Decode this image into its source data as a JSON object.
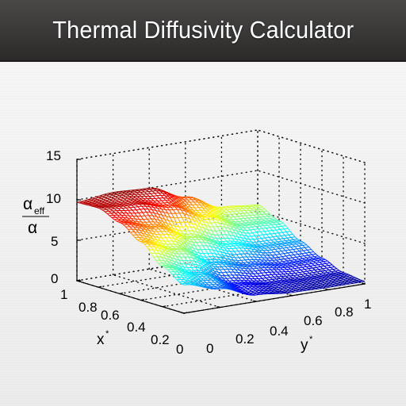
{
  "app": {
    "title": "Thermal Diffusivity Calculator"
  },
  "chart_data": {
    "type": "surface",
    "zlabel_numerator": "α",
    "zlabel_numerator_sub": "eff",
    "zlabel_denominator": "α",
    "xlabel": "x",
    "xlabel_sup": "*",
    "ylabel": "y",
    "ylabel_sup": "*",
    "zticks": [
      "0",
      "5",
      "10",
      "15"
    ],
    "xticks": [
      "0",
      "0.2",
      "0.4",
      "0.6",
      "0.8",
      "1"
    ],
    "yticks": [
      "0",
      "0.2",
      "0.4",
      "0.6",
      "0.8",
      "1"
    ],
    "zlim": [
      0,
      15
    ],
    "xlim": [
      0,
      1
    ],
    "ylim": [
      0,
      1
    ],
    "colormap": "jet",
    "grid": true,
    "surface_description_points": {
      "x_samples": [
        0,
        0.2,
        0.4,
        0.6,
        0.8,
        1.0
      ],
      "y_samples": [
        0,
        0.2,
        0.4,
        0.6,
        0.8,
        1.0
      ],
      "z": [
        [
          3.5,
          2.3,
          0.8,
          0.4,
          0.3,
          0.3
        ],
        [
          5.0,
          3.4,
          1.4,
          0.8,
          0.6,
          0.6
        ],
        [
          7.2,
          5.6,
          3.2,
          2.2,
          1.6,
          1.6
        ],
        [
          8.8,
          7.6,
          5.6,
          4.0,
          3.0,
          2.9
        ],
        [
          9.8,
          9.6,
          8.6,
          6.6,
          4.8,
          4.6
        ],
        [
          9.7,
          10.2,
          10.0,
          8.2,
          6.2,
          5.8
        ]
      ]
    }
  }
}
